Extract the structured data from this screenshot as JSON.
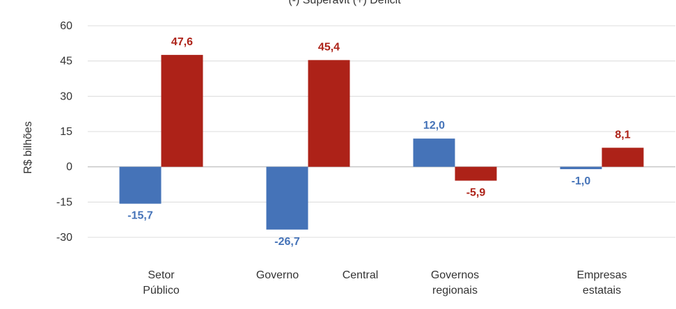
{
  "chart_data": {
    "type": "bar",
    "title": "(-) Superávit (+) Déficit",
    "ylabel": "R$ bilhões",
    "ylim": [
      -30,
      60
    ],
    "yticks": [
      60,
      45,
      30,
      15,
      0,
      -15,
      -30
    ],
    "grid": true,
    "categories": [
      [
        "Setor",
        "Público"
      ],
      [
        "Governo",
        "Central"
      ],
      [
        "Governos",
        "regionais"
      ],
      [
        "Empresas",
        "estatais"
      ]
    ],
    "series": [
      {
        "color": "#4573b8",
        "values": [
          -15.7,
          -26.7,
          12.0,
          -1.0
        ],
        "labels": [
          "-15,7",
          "-26,7",
          "12,0",
          "-1,0"
        ]
      },
      {
        "color": "#ad2218",
        "values": [
          47.6,
          45.4,
          -5.9,
          8.1
        ],
        "labels": [
          "47,6",
          "45,4",
          "-5,9",
          "8,1"
        ]
      }
    ]
  }
}
